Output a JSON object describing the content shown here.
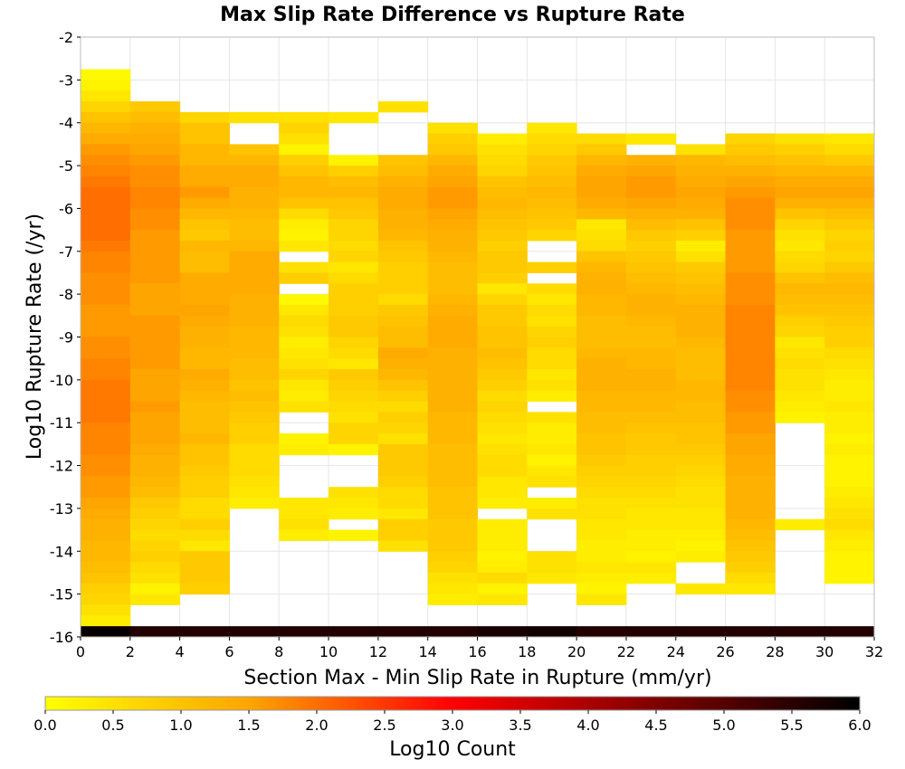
{
  "chart_data": {
    "type": "heatmap",
    "title": "Max Slip Rate Difference vs Rupture Rate",
    "xlabel": "Section Max - Min Slip Rate in Rupture (mm/yr)",
    "ylabel": "Log10 Rupture Rate (/yr)",
    "xlim": [
      0,
      32
    ],
    "ylim": [
      -16,
      -2
    ],
    "x_ticks": [
      "0",
      "2",
      "4",
      "6",
      "8",
      "10",
      "12",
      "14",
      "16",
      "18",
      "20",
      "22",
      "24",
      "26",
      "28",
      "30",
      "32"
    ],
    "y_ticks": [
      "-2",
      "-3",
      "-4",
      "-5",
      "-6",
      "-7",
      "-8",
      "-9",
      "-10",
      "-11",
      "-12",
      "-13",
      "-14",
      "-15",
      "-16"
    ],
    "x_bin_width": 2,
    "y_bin_width": 0.25,
    "grid": true,
    "colorbar": {
      "label": "Log10 Count",
      "range": [
        0.0,
        6.0
      ],
      "ticks": [
        "0.0",
        "0.5",
        "1.0",
        "1.5",
        "2.0",
        "2.5",
        "3.0",
        "3.5",
        "4.0",
        "4.5",
        "5.0",
        "5.5",
        "6.0"
      ],
      "colors": [
        "#ffff00",
        "#ffa500",
        "#ff0000",
        "#000000"
      ],
      "placement": "bottom"
    },
    "columns": [
      {
        "x_start": 0,
        "top": -2.75,
        "bottom_value": 5.9,
        "values": [
          0.1,
          0.2,
          0.4,
          0.7,
          1.0,
          1.2,
          1.4,
          1.6,
          1.7,
          1.8,
          1.9,
          2.0,
          2.0,
          2.0,
          2.0,
          2.0,
          1.9,
          1.8,
          1.8,
          1.7,
          1.7,
          1.7,
          1.6,
          1.6,
          1.6,
          1.7,
          1.7,
          1.8,
          1.8,
          1.9,
          1.9,
          1.9,
          1.9,
          1.8,
          1.8,
          1.8,
          1.7,
          1.7,
          1.6,
          1.6,
          1.5,
          1.4,
          1.3,
          1.3,
          1.2,
          1.2,
          1.1,
          1.0,
          0.8,
          0.7,
          0.5,
          0.3
        ],
        "missing": []
      },
      {
        "x_start": 2,
        "top": -3.5,
        "bottom_value": 5.6,
        "values": [
          0.9,
          1.1,
          1.3,
          1.4,
          1.5,
          1.6,
          1.7,
          1.7,
          1.8,
          1.8,
          1.7,
          1.7,
          1.6,
          1.6,
          1.6,
          1.6,
          1.6,
          1.5,
          1.5,
          1.5,
          1.6,
          1.6,
          1.6,
          1.6,
          1.6,
          1.5,
          1.5,
          1.5,
          1.6,
          1.5,
          1.5,
          1.5,
          1.4,
          1.3,
          1.3,
          1.2,
          1.1,
          0.9,
          0.8,
          0.7,
          0.6,
          0.7,
          0.8,
          0.6,
          0.5,
          0.2,
          0.4
        ],
        "missing": []
      },
      {
        "x_start": 4,
        "top": -3.75,
        "bottom_value": 5.6,
        "values": [
          0.7,
          1.0,
          1.0,
          1.2,
          1.2,
          1.4,
          1.4,
          1.6,
          1.4,
          1.2,
          1.0,
          0.9,
          1.2,
          1.1,
          1.1,
          1.4,
          1.4,
          1.4,
          1.5,
          1.4,
          1.3,
          1.3,
          1.2,
          1.2,
          1.4,
          1.3,
          1.2,
          1.1,
          1.1,
          1.1,
          1.2,
          1.0,
          1.0,
          0.9,
          0.8,
          0.8,
          0.6,
          0.6,
          0.8,
          0.6,
          0.4,
          0.9,
          0.9,
          0.9,
          0.8
        ],
        "missing": []
      },
      {
        "x_start": 6,
        "top": -3.75,
        "bottom_value": 5.6,
        "values": [
          0.5,
          -1,
          -1,
          1.0,
          1.2,
          1.4,
          1.4,
          1.3,
          1.3,
          1.2,
          1.1,
          1.1,
          1.2,
          1.4,
          1.4,
          1.4,
          1.4,
          1.3,
          1.3,
          1.3,
          1.2,
          1.2,
          1.2,
          1.1,
          1.1,
          1.0,
          1.1,
          1.0,
          0.9,
          0.8,
          0.8,
          0.6,
          0.6,
          0.6,
          0.5,
          0.4,
          0.3,
          -1,
          -1,
          -1,
          -1,
          -1,
          -1,
          -1,
          -1
        ],
        "missing": []
      },
      {
        "x_start": 8,
        "top": -3.75,
        "bottom_value": 5.6,
        "values": [
          0.5,
          0.7,
          0.5,
          0.2,
          0.8,
          1.0,
          1.2,
          1.2,
          1.0,
          0.6,
          0.3,
          0.2,
          0.4,
          -1,
          0.5,
          0.8,
          -1,
          0.1,
          0.4,
          0.6,
          0.5,
          0.3,
          0.4,
          0.5,
          0.7,
          0.4,
          0.3,
          0.5,
          -1,
          -1,
          0.2,
          0.3,
          -1,
          -1,
          -1,
          -1,
          0.4,
          0.4,
          0.5,
          0.3,
          -1,
          -1,
          -1,
          -1,
          -1,
          -1
        ],
        "missing": []
      },
      {
        "x_start": 10,
        "top": -3.75,
        "bottom_value": 5.6,
        "values": [
          0.4,
          -1,
          -1,
          -1,
          0.2,
          0.8,
          1.1,
          1.2,
          1.0,
          0.9,
          0.7,
          0.7,
          0.6,
          0.7,
          0.4,
          0.6,
          0.8,
          0.8,
          0.8,
          0.9,
          0.9,
          0.7,
          0.6,
          0.4,
          0.9,
          0.8,
          0.7,
          0.6,
          0.5,
          0.7,
          0.7,
          0.2,
          -1,
          -1,
          -1,
          0.5,
          0.4,
          0.3,
          -1,
          0.2,
          -1,
          -1,
          -1,
          -1,
          -1,
          -1
        ],
        "missing": []
      },
      {
        "x_start": 12,
        "top": -3.5,
        "bottom_value": 5.6,
        "values": [
          0.5,
          -1,
          -1,
          -1,
          -1,
          1.0,
          1.1,
          1.3,
          1.4,
          1.4,
          1.3,
          1.3,
          1.2,
          1.0,
          0.9,
          0.8,
          0.8,
          0.8,
          0.6,
          0.9,
          1.0,
          1.1,
          1.1,
          1.4,
          1.3,
          1.2,
          1.0,
          0.8,
          0.6,
          0.8,
          0.7,
          0.5,
          0.9,
          0.9,
          0.9,
          0.8,
          0.6,
          0.6,
          0.4,
          0.8,
          0.8,
          0.5,
          -1,
          -1,
          -1,
          -1,
          -1
        ],
        "missing": []
      },
      {
        "x_start": 14,
        "top": -4.0,
        "bottom_value": 5.6,
        "values": [
          0.5,
          0.8,
          0.9,
          1.2,
          1.4,
          1.5,
          1.6,
          1.6,
          1.5,
          1.4,
          1.3,
          1.3,
          1.2,
          1.1,
          1.1,
          1.1,
          1.2,
          1.3,
          1.4,
          1.4,
          1.4,
          1.3,
          1.3,
          1.3,
          1.3,
          1.3,
          1.3,
          1.2,
          1.2,
          1.2,
          1.1,
          1.1,
          1.1,
          1.1,
          1.0,
          1.0,
          1.0,
          0.9,
          0.9,
          0.9,
          0.8,
          0.7,
          0.5,
          0.4,
          0.3
        ],
        "missing": []
      },
      {
        "x_start": 16,
        "top": -4.25,
        "bottom_value": 5.7,
        "values": [
          0.3,
          0.5,
          0.6,
          0.7,
          1.0,
          1.1,
          1.2,
          1.1,
          1.0,
          0.9,
          0.8,
          0.9,
          0.9,
          0.8,
          0.4,
          0.7,
          0.9,
          0.9,
          1.0,
          1.0,
          1.1,
          1.0,
          0.9,
          0.8,
          0.6,
          0.7,
          0.6,
          0.5,
          0.4,
          0.5,
          0.6,
          0.6,
          0.4,
          0.4,
          0.3,
          -1,
          0.3,
          0.3,
          0.3,
          0.2,
          0.3,
          0.6,
          0.2,
          0.4,
          -1,
          -1
        ],
        "missing": []
      },
      {
        "x_start": 18,
        "top": -4.0,
        "bottom_value": 5.8,
        "values": [
          0.4,
          0.6,
          0.7,
          0.9,
          1.0,
          1.1,
          1.2,
          1.1,
          1.0,
          0.9,
          0.7,
          -1,
          -1,
          0.8,
          -1,
          0.6,
          0.4,
          0.6,
          0.5,
          0.7,
          0.8,
          0.6,
          0.6,
          0.4,
          0.5,
          0.3,
          -1,
          0.5,
          0.3,
          0.3,
          0.4,
          0.2,
          0.4,
          0.5,
          -1,
          0.3,
          0.5,
          -1,
          -1,
          -1,
          0.5,
          0.5,
          0.4,
          -1,
          -1,
          -1,
          -1
        ],
        "missing": []
      },
      {
        "x_start": 20,
        "top": -4.25,
        "bottom_value": 5.6,
        "values": [
          0.6,
          0.9,
          1.2,
          1.4,
          1.5,
          1.5,
          1.4,
          1.2,
          0.4,
          0.5,
          0.6,
          1.0,
          1.2,
          1.3,
          1.3,
          1.2,
          1.2,
          1.1,
          1.1,
          1.1,
          1.2,
          1.3,
          1.3,
          1.3,
          1.2,
          1.2,
          1.1,
          1.1,
          1.0,
          1.0,
          0.9,
          0.8,
          0.7,
          0.6,
          0.5,
          0.5,
          0.4,
          0.4,
          0.3,
          0.3,
          0.4,
          0.3,
          0.2,
          0.4
        ],
        "missing": []
      },
      {
        "x_start": 22,
        "top": -4.25,
        "bottom_value": 5.6,
        "values": [
          0.4,
          -1,
          1.3,
          1.5,
          1.6,
          1.6,
          1.5,
          1.3,
          1.1,
          0.9,
          0.8,
          0.9,
          1.0,
          1.1,
          1.2,
          1.3,
          1.3,
          1.2,
          1.1,
          1.1,
          1.2,
          1.2,
          1.3,
          1.3,
          1.2,
          1.2,
          1.1,
          1.0,
          0.9,
          0.9,
          0.8,
          0.8,
          0.7,
          0.6,
          0.5,
          0.4,
          0.4,
          0.3,
          0.3,
          0.2,
          0.4,
          0.3,
          -1
        ],
        "missing": []
      },
      {
        "x_start": 24,
        "top": -4.5,
        "bottom_value": 5.6,
        "values": [
          0.5,
          1.2,
          1.3,
          1.4,
          1.5,
          1.4,
          1.3,
          1.0,
          0.8,
          0.3,
          0.5,
          0.9,
          1.0,
          1.1,
          1.2,
          1.3,
          1.3,
          1.3,
          1.2,
          1.1,
          1.1,
          1.1,
          1.2,
          1.2,
          1.1,
          1.1,
          1.0,
          1.0,
          0.9,
          0.8,
          0.7,
          0.6,
          0.5,
          0.5,
          0.4,
          0.4,
          0.3,
          0.2,
          0.3,
          -1,
          -1,
          0.4
        ],
        "missing": []
      },
      {
        "x_start": 26,
        "top": -4.25,
        "bottom_value": 5.6,
        "values": [
          0.7,
          0.9,
          1.1,
          1.3,
          1.5,
          1.6,
          1.7,
          1.7,
          1.7,
          1.6,
          1.6,
          1.6,
          1.6,
          1.7,
          1.7,
          1.7,
          1.8,
          1.8,
          1.8,
          1.8,
          1.8,
          1.8,
          1.8,
          1.8,
          1.7,
          1.7,
          1.6,
          1.6,
          1.5,
          1.5,
          1.4,
          1.4,
          1.3,
          1.3,
          1.3,
          1.3,
          1.2,
          1.1,
          1.0,
          0.9,
          0.8,
          0.6,
          0.4
        ],
        "missing": []
      },
      {
        "x_start": 28,
        "top": -4.25,
        "bottom_value": 5.6,
        "values": [
          0.5,
          0.8,
          1.0,
          1.2,
          1.4,
          1.5,
          1.3,
          1.0,
          0.7,
          0.5,
          0.4,
          0.6,
          0.7,
          1.0,
          1.2,
          1.1,
          1.0,
          0.8,
          0.7,
          0.4,
          0.5,
          0.6,
          0.5,
          0.5,
          0.4,
          0.3,
          0.2,
          -1,
          -1,
          -1,
          -1,
          -1,
          -1,
          -1,
          -1,
          -1,
          0.3
        ],
        "missing": []
      },
      {
        "x_start": 30,
        "top": -4.25,
        "bottom_value": 5.6,
        "values": [
          0.4,
          0.6,
          0.9,
          1.2,
          1.4,
          1.5,
          1.3,
          1.1,
          0.9,
          0.7,
          0.8,
          0.7,
          0.9,
          1.1,
          1.2,
          1.1,
          1.0,
          0.9,
          0.8,
          0.8,
          0.6,
          0.5,
          0.4,
          0.3,
          0.3,
          0.4,
          0.3,
          0.3,
          0.2,
          0.3,
          0.2,
          0.2,
          0.2,
          0.3,
          0.4,
          0.5,
          0.6,
          0.4,
          0.3,
          0.2,
          0.2,
          0.2,
          -1
        ],
        "missing": []
      }
    ]
  }
}
